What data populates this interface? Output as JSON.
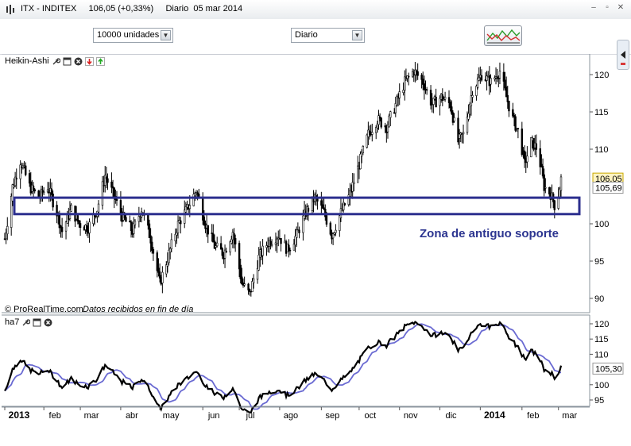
{
  "window": {
    "title": "ITX - INDITEX     106,05 (+0,33%)     Diario  05 mar 2014"
  },
  "toolbar": {
    "units_select": "10000 unidades",
    "period_select": "Diario"
  },
  "price_pane": {
    "label": "Heikin-Ashi",
    "annotation": "Zona de antiguo soporte",
    "copyright": "© ProRealTime.com",
    "data_note": "Datos recibidos en fin de día"
  },
  "indicator_pane": {
    "label": "ha7"
  },
  "colors": {
    "price": "#000000",
    "average": "#6a6ad2",
    "support_zone": "#2c2f8e",
    "annotation": "#2c3590"
  },
  "chart_data": [
    {
      "type": "candlestick",
      "series_name": "Heikin-Ashi",
      "x_axis": [
        "2013",
        "feb",
        "mar",
        "abr",
        "may",
        "jun",
        "jul",
        "ago",
        "sep",
        "oct",
        "nov",
        "dic",
        "2014",
        "feb",
        "mar"
      ],
      "y_axis": {
        "range": [
          88,
          122
        ],
        "ticks": [
          "120",
          "115",
          "110",
          "100",
          "95",
          "90"
        ]
      },
      "last_price": "106,05",
      "second_marker": "105,69",
      "support_zone": [
        101.3,
        103.5
      ],
      "close_path": [
        [
          "2013-01-02",
          98
        ],
        [
          "2013-01-08",
          105
        ],
        [
          "2013-01-14",
          108.5
        ],
        [
          "2013-01-21",
          105
        ],
        [
          "2013-01-28",
          103.5
        ],
        [
          "2013-02-04",
          105
        ],
        [
          "2013-02-11",
          101.5
        ],
        [
          "2013-02-15",
          99
        ],
        [
          "2013-02-22",
          102
        ],
        [
          "2013-02-28",
          100
        ],
        [
          "2013-03-07",
          99.5
        ],
        [
          "2013-03-14",
          102
        ],
        [
          "2013-03-20",
          106.5
        ],
        [
          "2013-03-26",
          104
        ],
        [
          "2013-04-02",
          101
        ],
        [
          "2013-04-10",
          99
        ],
        [
          "2013-04-17",
          102
        ],
        [
          "2013-04-24",
          98
        ],
        [
          "2013-05-01",
          92
        ],
        [
          "2013-05-08",
          96
        ],
        [
          "2013-05-15",
          100
        ],
        [
          "2013-05-22",
          102
        ],
        [
          "2013-05-29",
          104.5
        ],
        [
          "2013-06-05",
          100
        ],
        [
          "2013-06-12",
          97
        ],
        [
          "2013-06-19",
          96
        ],
        [
          "2013-06-26",
          99
        ],
        [
          "2013-07-03",
          92
        ],
        [
          "2013-07-09",
          90.5
        ],
        [
          "2013-07-16",
          95.5
        ],
        [
          "2013-07-23",
          97.5
        ],
        [
          "2013-07-31",
          98.5
        ],
        [
          "2013-08-07",
          96.5
        ],
        [
          "2013-08-14",
          98.5
        ],
        [
          "2013-08-21",
          101.5
        ],
        [
          "2013-08-28",
          103.5
        ],
        [
          "2013-09-04",
          101.5
        ],
        [
          "2013-09-10",
          98.5
        ],
        [
          "2013-09-17",
          101.5
        ],
        [
          "2013-09-24",
          104
        ],
        [
          "2013-10-01",
          108
        ],
        [
          "2013-10-08",
          112
        ],
        [
          "2013-10-15",
          114
        ],
        [
          "2013-10-22",
          113
        ],
        [
          "2013-10-29",
          116
        ],
        [
          "2013-11-05",
          119
        ],
        [
          "2013-11-12",
          120.5
        ],
        [
          "2013-11-19",
          119
        ],
        [
          "2013-11-26",
          116
        ],
        [
          "2013-12-03",
          117
        ],
        [
          "2013-12-10",
          116
        ],
        [
          "2013-12-16",
          111
        ],
        [
          "2013-12-20",
          112
        ],
        [
          "2013-12-27",
          118
        ],
        [
          "2014-01-03",
          120
        ],
        [
          "2014-01-10",
          119
        ],
        [
          "2014-01-17",
          120.5
        ],
        [
          "2014-01-22",
          117
        ],
        [
          "2014-01-27",
          114
        ],
        [
          "2014-02-01",
          112
        ],
        [
          "2014-02-05",
          108
        ],
        [
          "2014-02-10",
          111
        ],
        [
          "2014-02-15",
          110
        ],
        [
          "2014-02-20",
          105
        ],
        [
          "2014-02-25",
          104
        ],
        [
          "2014-03-01",
          102
        ],
        [
          "2014-03-05",
          106
        ]
      ]
    },
    {
      "type": "line",
      "series_name": "ha7",
      "y_axis": {
        "range": [
          91,
          121
        ],
        "ticks": [
          "120",
          "115",
          "110",
          "100",
          "95"
        ]
      },
      "last_value": "105,30"
    }
  ]
}
